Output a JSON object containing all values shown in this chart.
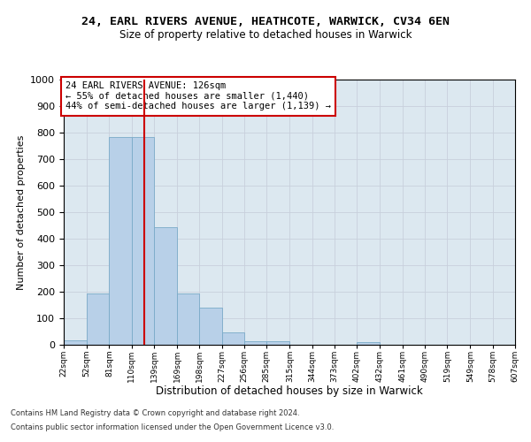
{
  "title": "24, EARL RIVERS AVENUE, HEATHCOTE, WARWICK, CV34 6EN",
  "subtitle": "Size of property relative to detached houses in Warwick",
  "xlabel": "Distribution of detached houses by size in Warwick",
  "ylabel": "Number of detached properties",
  "bar_color": "#b8d0e8",
  "bar_edge_color": "#7aaac8",
  "grid_color": "#c8d0dc",
  "background_color": "#dce8f0",
  "vline_value": 126,
  "vline_color": "#cc0000",
  "bin_edges": [
    22,
    52,
    81,
    110,
    139,
    169,
    198,
    227,
    256,
    285,
    315,
    344,
    373,
    402,
    432,
    461,
    490,
    519,
    549,
    578,
    607
  ],
  "bar_heights": [
    18,
    195,
    785,
    785,
    443,
    195,
    140,
    48,
    15,
    12,
    0,
    0,
    0,
    10,
    0,
    0,
    0,
    0,
    0,
    0
  ],
  "ylim": [
    0,
    1000
  ],
  "yticks": [
    0,
    100,
    200,
    300,
    400,
    500,
    600,
    700,
    800,
    900,
    1000
  ],
  "annotation_text": "24 EARL RIVERS AVENUE: 126sqm\n← 55% of detached houses are smaller (1,440)\n44% of semi-detached houses are larger (1,139) →",
  "annotation_box_color": "#ffffff",
  "annotation_border_color": "#cc0000",
  "footer_line1": "Contains HM Land Registry data © Crown copyright and database right 2024.",
  "footer_line2": "Contains public sector information licensed under the Open Government Licence v3.0."
}
